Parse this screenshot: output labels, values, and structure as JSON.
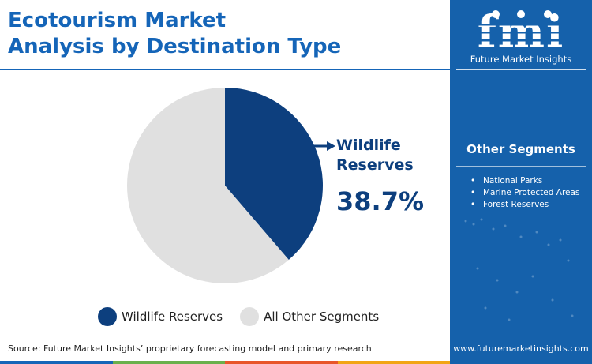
{
  "title_line1": "Ecotourism Market",
  "title_line2": "Analysis by Destination Type",
  "chart_data": {
    "type": "pie",
    "title": "Ecotourism Market Analysis by Destination Type",
    "slices": [
      {
        "label": "Wildlife Reserves",
        "value": 38.7,
        "color": "#0d3f7e"
      },
      {
        "label": "All Other Segments",
        "value": 61.3,
        "color": "#e0e0e0"
      }
    ],
    "callout": {
      "label": "Wildlife Reserves",
      "value_text": "38.7%"
    },
    "legend_position": "bottom"
  },
  "legend": [
    {
      "label": "Wildlife Reserves",
      "color": "#0d3f7e"
    },
    {
      "label": "All Other Segments",
      "color": "#e0e0e0"
    }
  ],
  "source": "Source: Future Market Insights’ proprietary forecasting model and primary research",
  "brand": {
    "logo_text": "fmi",
    "tagline": "Future Market Insights",
    "website": "www.futuremarketinsights.com",
    "panel_color": "#1561ab"
  },
  "other_segments": {
    "title": "Other Segments",
    "items": [
      "National Parks",
      "Marine Protected Areas",
      "Forest Reserves"
    ]
  },
  "bottom_bar_colors": [
    "#1565b8",
    "#6ab04c",
    "#e8562a",
    "#f2a516"
  ]
}
